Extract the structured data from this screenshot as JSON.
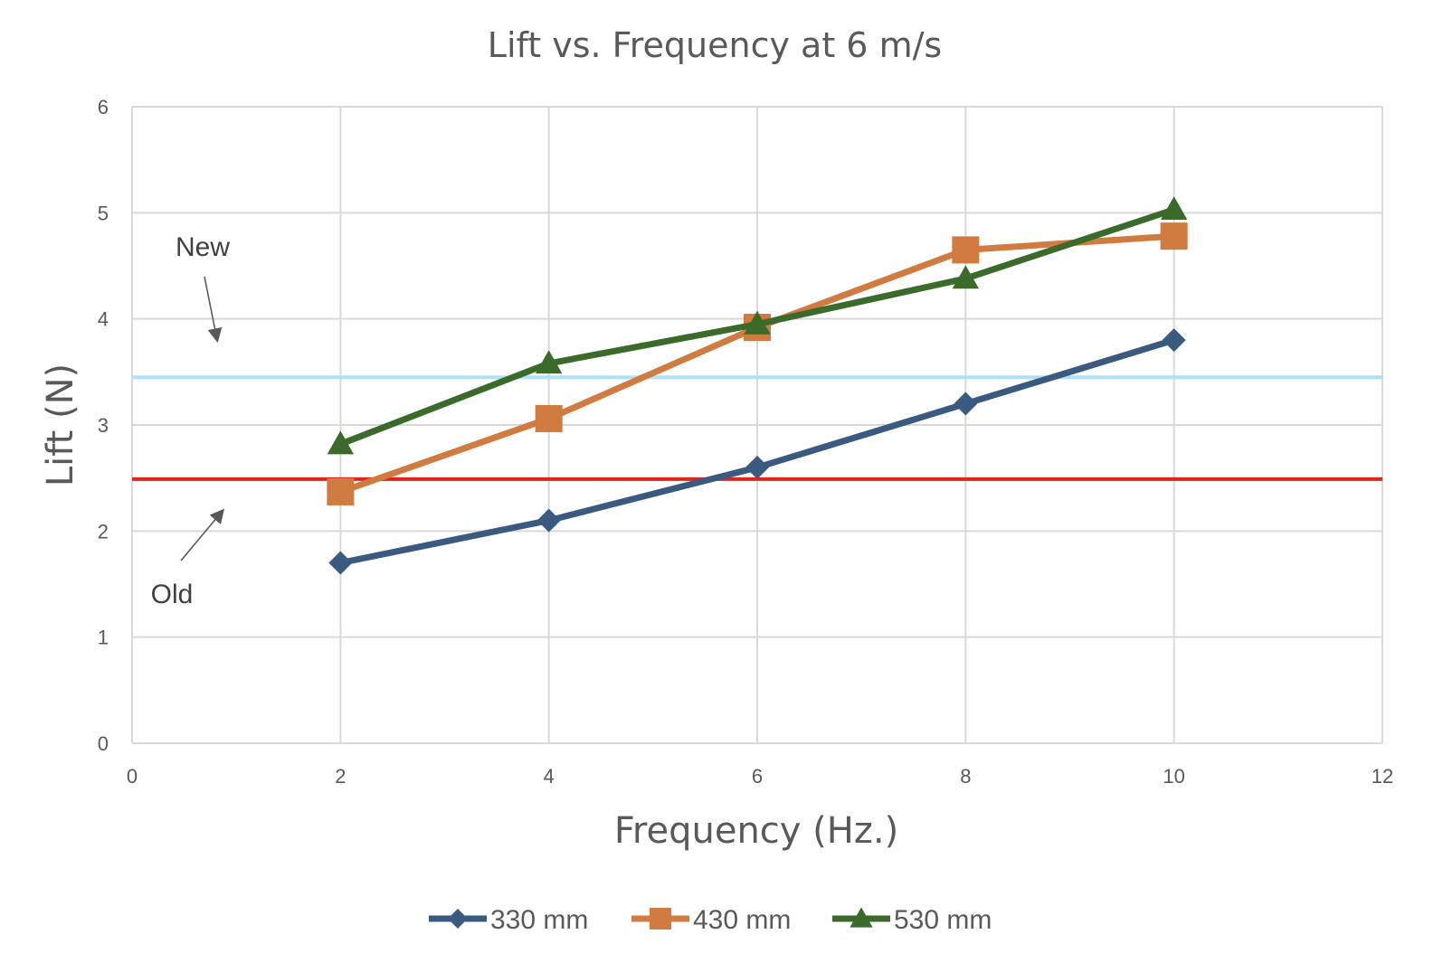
{
  "chart_data": {
    "type": "scatter",
    "title": "Lift vs. Frequency at 6 m/s",
    "xlabel": "Frequency (Hz.)",
    "ylabel": "Lift (N)",
    "xlim": [
      0,
      12
    ],
    "ylim": [
      0,
      6
    ],
    "xticks": [
      "0",
      "2",
      "4",
      "6",
      "8",
      "10",
      "12"
    ],
    "yticks": [
      "0",
      "1",
      "2",
      "3",
      "4",
      "5",
      "6"
    ],
    "grid": true,
    "legend_position": "bottom",
    "series": [
      {
        "name": "330 mm",
        "color": "#3b5a80",
        "marker": "diamond",
        "x": [
          2,
          4,
          6,
          8,
          10
        ],
        "y": [
          1.7,
          2.1,
          2.6,
          3.2,
          3.8
        ]
      },
      {
        "name": "430 mm",
        "color": "#d07b3f",
        "marker": "square",
        "x": [
          2,
          4,
          6,
          8,
          10
        ],
        "y": [
          2.37,
          3.06,
          3.92,
          4.65,
          4.78
        ]
      },
      {
        "name": "530 mm",
        "color": "#3a6b2a",
        "marker": "triangle",
        "x": [
          2,
          4,
          6,
          8,
          10
        ],
        "y": [
          2.82,
          3.58,
          3.95,
          4.38,
          5.03
        ]
      }
    ],
    "reference_lines": [
      {
        "label": "New",
        "color": "#aee0f7",
        "y": 3.45
      },
      {
        "label": "Old",
        "color": "#e0241c",
        "y": 2.49
      }
    ],
    "annotations": [
      {
        "text": "New",
        "points_to": "New reference line"
      },
      {
        "text": "Old",
        "points_to": "Old reference line"
      }
    ]
  }
}
